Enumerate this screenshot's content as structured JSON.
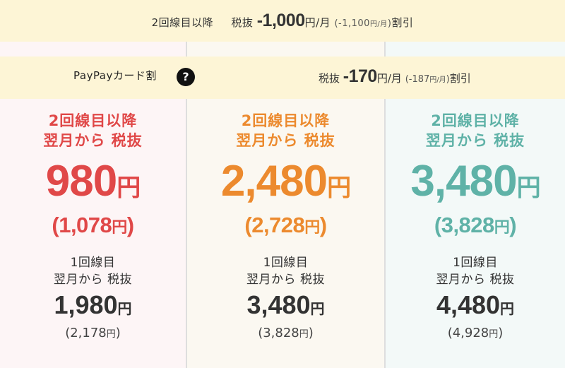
{
  "discount_multi_line": {
    "lead": "2回線目以降",
    "tax_label": "税抜",
    "amount": "-1,000",
    "unit": "円/月",
    "paren_open": "(-1,100",
    "paren_unit": "円/月",
    "paren_close": ")",
    "suffix": "割引"
  },
  "paypay": {
    "label": "PayPayカード割",
    "help_icon": "question-mark-icon",
    "help_glyph": "?",
    "tax_label": "税抜",
    "amount": "-170",
    "unit": "円/月",
    "paren_open": "(-187",
    "paren_unit": "円/月",
    "paren_close": ")",
    "suffix": "割引"
  },
  "colors": {
    "plan1": "#e04848",
    "plan2": "#ec8a2e",
    "plan3": "#5fb2a7",
    "band": "#fdf5d6"
  },
  "plans": [
    {
      "hd_line1": "2回線目以降",
      "hd_line2": "翌月から 税抜",
      "price": "980",
      "price_unit": "円",
      "tax_open": "(1,078",
      "tax_unit": "円",
      "tax_close": ")",
      "sub_line1": "1回線目",
      "sub_line2": "翌月から 税抜",
      "sub_price": "1,980",
      "sub_unit": "円",
      "sub_tax_open": "(2,178",
      "sub_tax_unit": "円",
      "sub_tax_close": ")"
    },
    {
      "hd_line1": "2回線目以降",
      "hd_line2": "翌月から 税抜",
      "price": "2,480",
      "price_unit": "円",
      "tax_open": "(2,728",
      "tax_unit": "円",
      "tax_close": ")",
      "sub_line1": "1回線目",
      "sub_line2": "翌月から 税抜",
      "sub_price": "3,480",
      "sub_unit": "円",
      "sub_tax_open": "(3,828",
      "sub_tax_unit": "円",
      "sub_tax_close": ")"
    },
    {
      "hd_line1": "2回線目以降",
      "hd_line2": "翌月から 税抜",
      "price": "3,480",
      "price_unit": "円",
      "tax_open": "(3,828",
      "tax_unit": "円",
      "tax_close": ")",
      "sub_line1": "1回線目",
      "sub_line2": "翌月から 税抜",
      "sub_price": "4,480",
      "sub_unit": "円",
      "sub_tax_open": "(4,928",
      "sub_tax_unit": "円",
      "sub_tax_close": ")"
    }
  ]
}
